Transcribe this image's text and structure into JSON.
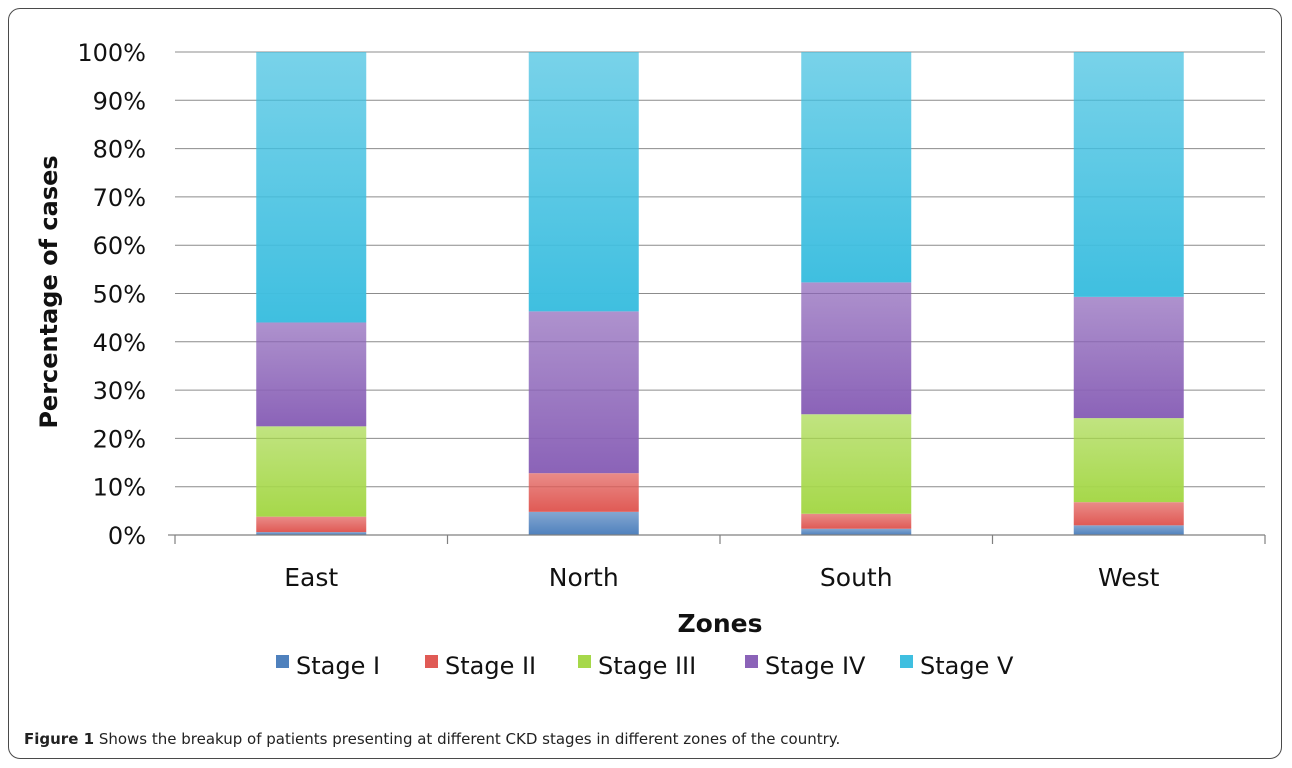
{
  "chart_data": {
    "type": "bar",
    "stacked": true,
    "percent_stacked": true,
    "categories": [
      "East",
      "North",
      "South",
      "West"
    ],
    "series": [
      {
        "name": "Stage I",
        "color": "#4f81bd",
        "values": [
          0.6,
          4.8,
          1.3,
          2.0
        ]
      },
      {
        "name": "Stage II",
        "color": "#e05a55",
        "values": [
          3.2,
          8.0,
          3.1,
          4.8
        ]
      },
      {
        "name": "Stage III",
        "color": "#a6d84a",
        "values": [
          18.7,
          0,
          20.6,
          17.4
        ]
      },
      {
        "name": "Stage IV",
        "color": "#8b63b8",
        "values": [
          21.5,
          33.5,
          27.3,
          25.1
        ]
      },
      {
        "name": "Stage V",
        "color": "#3fbfe0",
        "values": [
          56.0,
          53.7,
          47.7,
          50.7
        ]
      }
    ],
    "yticks": [
      "0%",
      "10%",
      "20%",
      "30%",
      "40%",
      "50%",
      "60%",
      "70%",
      "80%",
      "90%",
      "100%"
    ],
    "ylim": [
      0,
      100
    ],
    "xlabel": "Zones",
    "ylabel": "Percentage of cases",
    "grid": true,
    "legend": "bottom"
  },
  "caption": {
    "label": "Figure 1",
    "text": " Shows the breakup of patients presenting at different CKD stages in different zones of the country",
    "end": "."
  }
}
